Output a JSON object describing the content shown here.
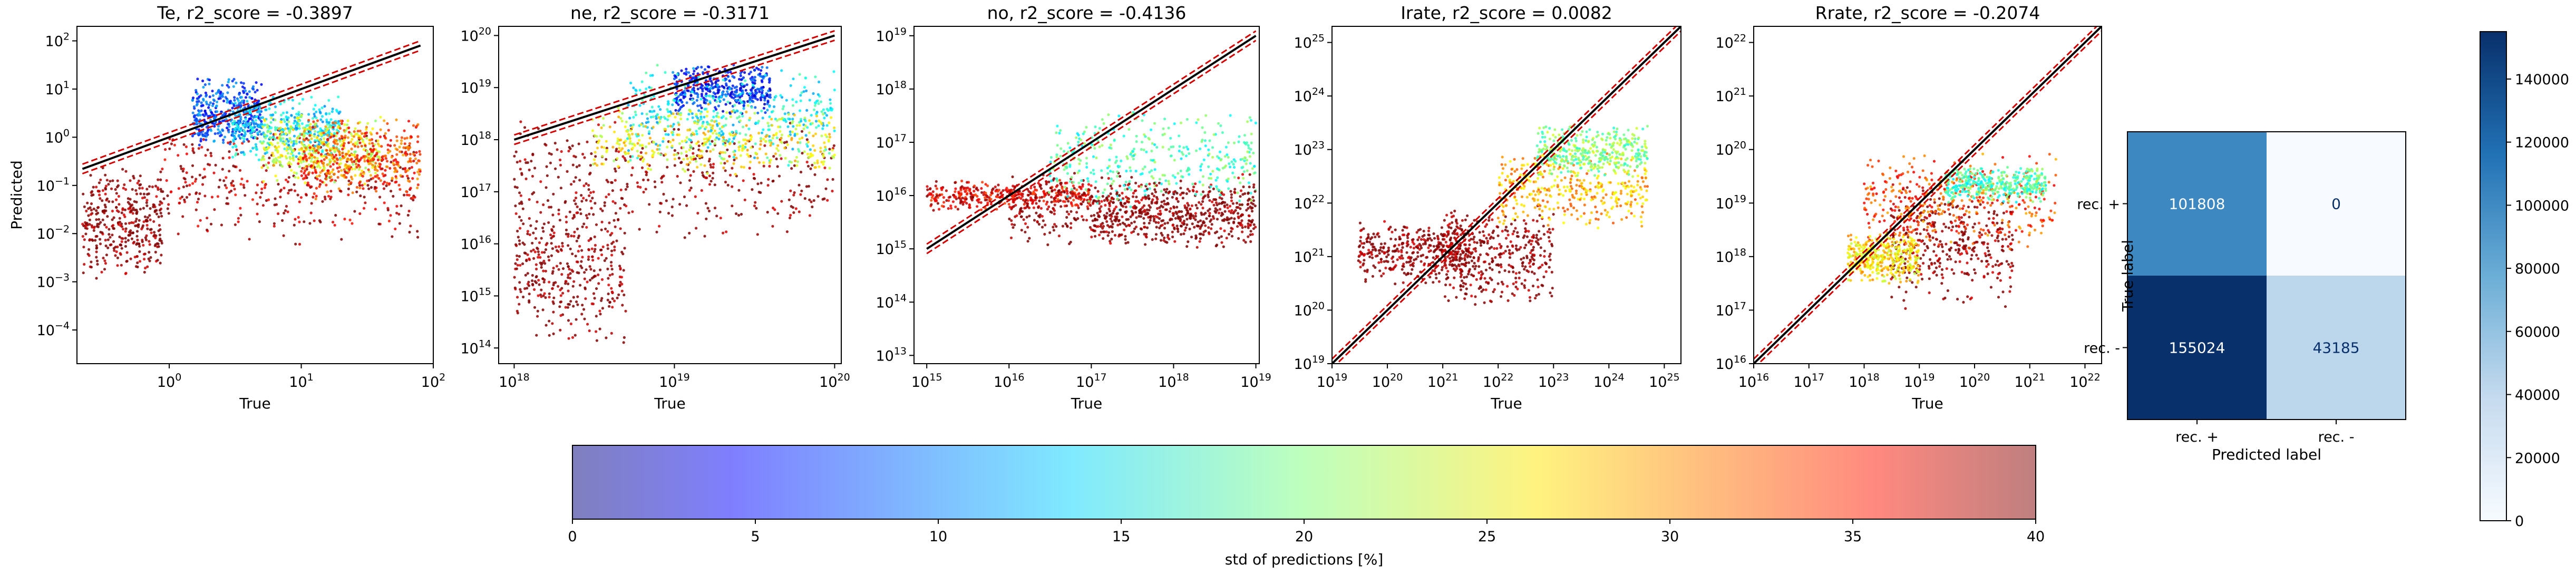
{
  "chart_data": [
    {
      "type": "scatter",
      "title": "Te, r2_score = -0.3897",
      "xlabel": "True",
      "ylabel": "Predicted",
      "log_x": true,
      "log_y": true,
      "xlim": [
        0.2,
        100
      ],
      "ylim": [
        2e-05,
        200
      ],
      "x_ticks": [
        {
          "value": 1,
          "label": "10^0"
        },
        {
          "value": 10,
          "label": "10^1"
        },
        {
          "value": 100,
          "label": "10^2"
        }
      ],
      "y_ticks": [
        {
          "value": 0.0001,
          "label": "10^-4"
        },
        {
          "value": 0.001,
          "label": "10^-3"
        },
        {
          "value": 0.01,
          "label": "10^-2"
        },
        {
          "value": 0.1,
          "label": "10^-1"
        },
        {
          "value": 1,
          "label": "10^0"
        },
        {
          "value": 10,
          "label": "10^1"
        },
        {
          "value": 100,
          "label": "10^2"
        }
      ],
      "reference_line": [
        [
          0.22,
          0.22
        ],
        [
          80,
          80
        ]
      ],
      "point_clusters": [
        {
          "x": [
            0.22,
            0.9
          ],
          "y": [
            0.001,
            0.3
          ],
          "std": 40
        },
        {
          "x": [
            0.9,
            80
          ],
          "y": [
            0.005,
            2
          ],
          "std": 38
        },
        {
          "x": [
            1.5,
            5
          ],
          "y": [
            0.5,
            20
          ],
          "std": 8
        },
        {
          "x": [
            3,
            20
          ],
          "y": [
            0.3,
            8
          ],
          "std": 14
        },
        {
          "x": [
            5,
            40
          ],
          "y": [
            0.1,
            3
          ],
          "std": 24
        },
        {
          "x": [
            10,
            80
          ],
          "y": [
            0.05,
            3
          ],
          "std": 32
        }
      ]
    },
    {
      "type": "scatter",
      "title": "ne, r2_score = -0.3171",
      "xlabel": "True",
      "ylabel": "",
      "log_x": true,
      "log_y": true,
      "xlim": [
        8e+17,
        1.1e+20
      ],
      "ylim": [
        50000000000000.0,
        1.5e+20
      ],
      "x_ticks": [
        {
          "value": 1e+18,
          "label": "10^18"
        },
        {
          "value": 1e+19,
          "label": "10^19"
        },
        {
          "value": 1e+20,
          "label": "10^20"
        }
      ],
      "y_ticks": [
        {
          "value": 100000000000000.0,
          "label": "10^14"
        },
        {
          "value": 1000000000000000.0,
          "label": "10^15"
        },
        {
          "value": 1e+16,
          "label": "10^16"
        },
        {
          "value": 1e+17,
          "label": "10^17"
        },
        {
          "value": 1e+18,
          "label": "10^18"
        },
        {
          "value": 1e+19,
          "label": "10^19"
        },
        {
          "value": 1e+20,
          "label": "10^20"
        }
      ],
      "reference_line": [
        [
          1e+18,
          1e+18
        ],
        [
          1e+20,
          1e+20
        ]
      ],
      "point_clusters": [
        {
          "x": [
            1e+18,
            1e+20
          ],
          "y": [
            1e+16,
            3e+18
          ],
          "std": 40
        },
        {
          "x": [
            1e+18,
            5e+18
          ],
          "y": [
            100000000000000.0,
            1e+17
          ],
          "std": 40
        },
        {
          "x": [
            1e+19,
            4e+19
          ],
          "y": [
            3e+18,
            3e+19
          ],
          "std": 6
        },
        {
          "x": [
            5e+18,
            1e+20
          ],
          "y": [
            3e+17,
            3e+19
          ],
          "std": 15
        },
        {
          "x": [
            3e+18,
            1e+20
          ],
          "y": [
            2e+17,
            5e+18
          ],
          "std": 25
        }
      ]
    },
    {
      "type": "scatter",
      "title": "no, r2_score = -0.4136",
      "xlabel": "True",
      "ylabel": "",
      "log_x": true,
      "log_y": true,
      "xlim": [
        700000000000000.0,
        1.1e+19
      ],
      "ylim": [
        7000000000000.0,
        1.5e+19
      ],
      "x_ticks": [
        {
          "value": 1000000000000000.0,
          "label": "10^15"
        },
        {
          "value": 1e+16,
          "label": "10^16"
        },
        {
          "value": 1e+17,
          "label": "10^17"
        },
        {
          "value": 1e+18,
          "label": "10^18"
        },
        {
          "value": 1e+19,
          "label": "10^19"
        }
      ],
      "y_ticks": [
        {
          "value": 10000000000000.0,
          "label": "10^13"
        },
        {
          "value": 100000000000000.0,
          "label": "10^14"
        },
        {
          "value": 1000000000000000.0,
          "label": "10^15"
        },
        {
          "value": 1e+16,
          "label": "10^16"
        },
        {
          "value": 1e+17,
          "label": "10^17"
        },
        {
          "value": 1e+18,
          "label": "10^18"
        },
        {
          "value": 1e+19,
          "label": "10^19"
        }
      ],
      "reference_line": [
        [
          1000000000000000.0,
          1000000000000000.0
        ],
        [
          1e+19,
          1e+19
        ]
      ],
      "point_clusters": [
        {
          "x": [
            1000000000000000.0,
            1e+17
          ],
          "y": [
            5000000000000000.0,
            2e+16
          ],
          "std": 36
        },
        {
          "x": [
            1e+16,
            1e+19
          ],
          "y": [
            1000000000000000.0,
            3e+16
          ],
          "std": 40
        },
        {
          "x": [
            3e+16,
            1e+19
          ],
          "y": [
            5000000000000000.0,
            5e+17
          ],
          "std": 18
        },
        {
          "x": [
            1e+17,
            1e+19
          ],
          "y": [
            1000000000000000.0,
            2e+16
          ],
          "std": 40
        }
      ]
    },
    {
      "type": "scatter",
      "title": "Irate, r2_score = 0.0082",
      "xlabel": "True",
      "ylabel": "",
      "log_x": true,
      "log_y": true,
      "xlim": [
        1e+19,
        2e+25
      ],
      "ylim": [
        1e+19,
        2e+25
      ],
      "x_ticks": [
        {
          "value": 1e+19,
          "label": "10^19"
        },
        {
          "value": 1e+20,
          "label": "10^20"
        },
        {
          "value": 1e+21,
          "label": "10^21"
        },
        {
          "value": 1e+22,
          "label": "10^22"
        },
        {
          "value": 1e+23,
          "label": "10^23"
        },
        {
          "value": 1e+24,
          "label": "10^24"
        },
        {
          "value": 1e+25,
          "label": "10^25"
        }
      ],
      "y_ticks": [
        {
          "value": 1e+19,
          "label": "10^19"
        },
        {
          "value": 1e+20,
          "label": "10^20"
        },
        {
          "value": 1e+21,
          "label": "10^21"
        },
        {
          "value": 1e+22,
          "label": "10^22"
        },
        {
          "value": 1e+23,
          "label": "10^23"
        },
        {
          "value": 1e+24,
          "label": "10^24"
        },
        {
          "value": 1e+25,
          "label": "10^25"
        }
      ],
      "reference_line": [
        [
          1e+19,
          1e+19
        ],
        [
          2e+25,
          2e+25
        ]
      ],
      "point_clusters": [
        {
          "x": [
            3e+19,
            3e+21
          ],
          "y": [
            3e+20,
            5e+21
          ],
          "std": 40
        },
        {
          "x": [
            1e+21,
            1e+23
          ],
          "y": [
            1e+20,
            1e+22
          ],
          "std": 40
        },
        {
          "x": [
            1e+22,
            5e+24
          ],
          "y": [
            3e+21,
            1e+23
          ],
          "std": 28
        },
        {
          "x": [
            5e+22,
            5e+24
          ],
          "y": [
            3e+22,
            3e+23
          ],
          "std": 20
        }
      ]
    },
    {
      "type": "scatter",
      "title": "Rrate, r2_score = -0.2074",
      "xlabel": "True",
      "ylabel": "",
      "log_x": true,
      "log_y": true,
      "xlim": [
        1e+16,
        2e+22
      ],
      "ylim": [
        1e+16,
        2e+22
      ],
      "x_ticks": [
        {
          "value": 1e+16,
          "label": "10^16"
        },
        {
          "value": 1e+17,
          "label": "10^17"
        },
        {
          "value": 1e+18,
          "label": "10^18"
        },
        {
          "value": 1e+19,
          "label": "10^19"
        },
        {
          "value": 1e+20,
          "label": "10^20"
        },
        {
          "value": 1e+21,
          "label": "10^21"
        },
        {
          "value": 1e+22,
          "label": "10^22"
        }
      ],
      "y_ticks": [
        {
          "value": 1e+16,
          "label": "10^16"
        },
        {
          "value": 1e+17,
          "label": "10^17"
        },
        {
          "value": 1e+18,
          "label": "10^18"
        },
        {
          "value": 1e+19,
          "label": "10^19"
        },
        {
          "value": 1e+20,
          "label": "10^20"
        },
        {
          "value": 1e+21,
          "label": "10^21"
        },
        {
          "value": 1e+22,
          "label": "10^22"
        }
      ],
      "reference_line": [
        [
          1e+16,
          1e+16
        ],
        [
          2e+22,
          2e+22
        ]
      ],
      "point_clusters": [
        {
          "x": [
            3e+18,
            5e+20
          ],
          "y": [
            1e+17,
            3e+19
          ],
          "std": 40
        },
        {
          "x": [
            1e+18,
            3e+21
          ],
          "y": [
            1e+18,
            1e+20
          ],
          "std": 32
        },
        {
          "x": [
            5e+17,
            1e+19
          ],
          "y": [
            3e+17,
            3e+18
          ],
          "std": 26
        },
        {
          "x": [
            3e+19,
            2e+21
          ],
          "y": [
            1e+19,
            5e+19
          ],
          "std": 18
        }
      ]
    },
    {
      "type": "heatmap",
      "title": "",
      "xlabel": "Predicted label",
      "ylabel": "True label",
      "x_categories": [
        "rec. +",
        "rec. -"
      ],
      "y_categories": [
        "rec. +",
        "rec. -"
      ],
      "values": [
        [
          101808,
          0
        ],
        [
          155024,
          43185
        ]
      ],
      "colormap": "Blues",
      "vmin": 0,
      "vmax": 155024,
      "colorbar_ticks": [
        0,
        20000,
        40000,
        60000,
        80000,
        100000,
        120000,
        140000
      ]
    },
    {
      "type": "colorbar",
      "label": "std of predictions [%]",
      "colormap": "jet",
      "range": [
        0,
        40
      ],
      "ticks": [
        0,
        5,
        10,
        15,
        20,
        25,
        30,
        35,
        40
      ]
    }
  ]
}
